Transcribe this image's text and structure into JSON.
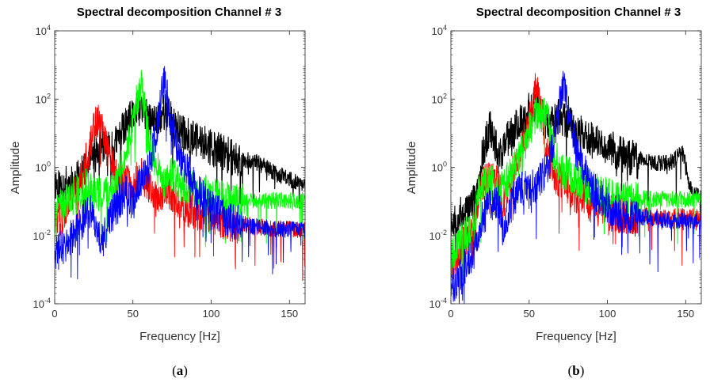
{
  "chart_data": [
    {
      "panel": "a",
      "caption_open": "(",
      "caption_letter": "a",
      "caption_close": ")",
      "type": "line",
      "title": "Spectral decomposition Channel # 3",
      "xlabel": "Frequency [Hz]",
      "ylabel": "Amplitude",
      "xlim": [
        0,
        160
      ],
      "ylim": [
        0.0001,
        10000
      ],
      "yscale": "log",
      "xticks": [
        "0",
        "50",
        "100",
        "150"
      ],
      "yticks": [
        {
          "base": "10",
          "exp": "-4"
        },
        {
          "base": "10",
          "exp": "-2"
        },
        {
          "base": "10",
          "exp": "0"
        },
        {
          "base": "10",
          "exp": "2"
        },
        {
          "base": "10",
          "exp": "4"
        }
      ],
      "series": [
        {
          "color": "#000000",
          "x": [
            0,
            2,
            5,
            10,
            15,
            20,
            25,
            28,
            30,
            33,
            37,
            40,
            45,
            50,
            53,
            55,
            58,
            60,
            65,
            70,
            75,
            80,
            90,
            100,
            110,
            120,
            130,
            140,
            150,
            155,
            160
          ],
          "y": [
            0.5,
            0.35,
            0.4,
            0.45,
            0.6,
            1.2,
            3,
            4,
            6,
            5,
            4,
            8,
            20,
            40,
            60,
            80,
            50,
            25,
            30,
            60,
            30,
            15,
            8,
            5,
            3,
            2,
            1.5,
            0.8,
            0.5,
            0.4,
            0.35
          ]
        },
        {
          "color": "#ff0000",
          "x": [
            0,
            5,
            10,
            15,
            20,
            25,
            28,
            30,
            33,
            36,
            40,
            45,
            50,
            55,
            60,
            65,
            70,
            75,
            80,
            90,
            100,
            110,
            120,
            130,
            140,
            150,
            160
          ],
          "y": [
            0.03,
            0.05,
            0.1,
            0.3,
            2,
            15,
            40,
            25,
            6,
            2,
            0.5,
            0.6,
            0.4,
            0.8,
            0.4,
            0.15,
            0.3,
            0.2,
            0.1,
            0.06,
            0.04,
            0.03,
            0.025,
            0.02,
            0.018,
            0.017,
            0.016
          ]
        },
        {
          "color": "#00ff00",
          "x": [
            0,
            5,
            10,
            15,
            20,
            25,
            30,
            35,
            40,
            45,
            50,
            53,
            55,
            57,
            60,
            65,
            70,
            75,
            80,
            90,
            100,
            110,
            120,
            130,
            140,
            150,
            160
          ],
          "y": [
            0.05,
            0.1,
            0.2,
            0.25,
            0.35,
            0.2,
            0.25,
            0.3,
            0.6,
            3,
            25,
            150,
            300,
            120,
            8,
            1.5,
            0.5,
            0.8,
            0.4,
            0.3,
            0.2,
            0.15,
            0.13,
            0.12,
            0.12,
            0.12,
            0.12
          ]
        },
        {
          "color": "#0000ff",
          "x": [
            0,
            5,
            10,
            15,
            20,
            23,
            26,
            30,
            33,
            36,
            40,
            45,
            50,
            55,
            60,
            65,
            68,
            70,
            72,
            75,
            80,
            90,
            100,
            110,
            120,
            130,
            140,
            150,
            160
          ],
          "y": [
            0.003,
            0.006,
            0.01,
            0.02,
            0.06,
            0.08,
            0.03,
            0.008,
            0.02,
            0.05,
            0.1,
            0.25,
            0.12,
            0.5,
            1,
            15,
            150,
            400,
            150,
            20,
            3,
            0.3,
            0.08,
            0.04,
            0.025,
            0.02,
            0.018,
            0.017,
            0.017
          ]
        }
      ]
    },
    {
      "panel": "b",
      "caption_open": "(",
      "caption_letter": "b",
      "caption_close": ")",
      "type": "line",
      "title": "Spectral decomposition Channel # 3",
      "xlabel": "Frequency [Hz]",
      "ylabel": "Amplitude",
      "xlim": [
        0,
        160
      ],
      "ylim": [
        0.0001,
        10000
      ],
      "yscale": "log",
      "xticks": [
        "0",
        "50",
        "100",
        "150"
      ],
      "yticks": [
        {
          "base": "10",
          "exp": "-4"
        },
        {
          "base": "10",
          "exp": "-2"
        },
        {
          "base": "10",
          "exp": "0"
        },
        {
          "base": "10",
          "exp": "2"
        },
        {
          "base": "10",
          "exp": "4"
        }
      ],
      "series": [
        {
          "color": "#000000",
          "x": [
            0,
            5,
            10,
            15,
            17,
            18,
            20,
            25,
            28,
            30,
            33,
            37,
            40,
            45,
            50,
            55,
            58,
            62,
            65,
            70,
            75,
            80,
            90,
            100,
            110,
            120,
            130,
            140,
            148,
            150,
            152,
            155,
            160
          ],
          "y": [
            0.035,
            0.045,
            0.07,
            0.12,
            0.2,
            0.3,
            3,
            20,
            8,
            3,
            4,
            10,
            15,
            30,
            60,
            80,
            40,
            25,
            30,
            40,
            30,
            15,
            8,
            5,
            3,
            2,
            1.5,
            1.5,
            3,
            1.2,
            0.4,
            0.2,
            0.15
          ]
        },
        {
          "color": "#ff0000",
          "x": [
            0,
            5,
            10,
            15,
            18,
            20,
            25,
            30,
            33,
            36,
            40,
            45,
            50,
            53,
            55,
            57,
            60,
            65,
            70,
            75,
            80,
            90,
            100,
            110,
            120,
            130,
            140,
            150,
            160
          ],
          "y": [
            0.001,
            0.004,
            0.01,
            0.02,
            0.3,
            0.4,
            0.6,
            0.5,
            0.1,
            0.2,
            1,
            5,
            30,
            200,
            250,
            100,
            10,
            1,
            0.5,
            0.3,
            0.2,
            0.1,
            0.06,
            0.05,
            0.045,
            0.04,
            0.04,
            0.04,
            0.04
          ]
        },
        {
          "color": "#00ff00",
          "x": [
            0,
            5,
            10,
            15,
            18,
            20,
            25,
            30,
            35,
            40,
            45,
            50,
            55,
            58,
            60,
            62,
            65,
            70,
            75,
            80,
            90,
            100,
            110,
            120,
            130,
            140,
            150,
            160
          ],
          "y": [
            0.003,
            0.008,
            0.015,
            0.03,
            0.3,
            0.35,
            0.5,
            0.3,
            0.5,
            1,
            3,
            15,
            50,
            40,
            60,
            30,
            5,
            1,
            0.8,
            0.5,
            0.3,
            0.2,
            0.15,
            0.14,
            0.13,
            0.13,
            0.13,
            0.13
          ]
        },
        {
          "color": "#0000ff",
          "x": [
            0,
            5,
            10,
            15,
            18,
            20,
            25,
            30,
            33,
            36,
            40,
            45,
            50,
            55,
            60,
            63,
            66,
            70,
            72,
            75,
            80,
            90,
            100,
            110,
            120,
            130,
            140,
            150,
            160
          ],
          "y": [
            0.0003,
            0.0008,
            0.002,
            0.005,
            0.02,
            0.04,
            0.1,
            0.15,
            0.02,
            0.05,
            0.15,
            0.3,
            0.3,
            0.4,
            1,
            2,
            8,
            150,
            400,
            60,
            4,
            0.3,
            0.1,
            0.05,
            0.04,
            0.035,
            0.03,
            0.03,
            0.03
          ]
        }
      ]
    }
  ]
}
